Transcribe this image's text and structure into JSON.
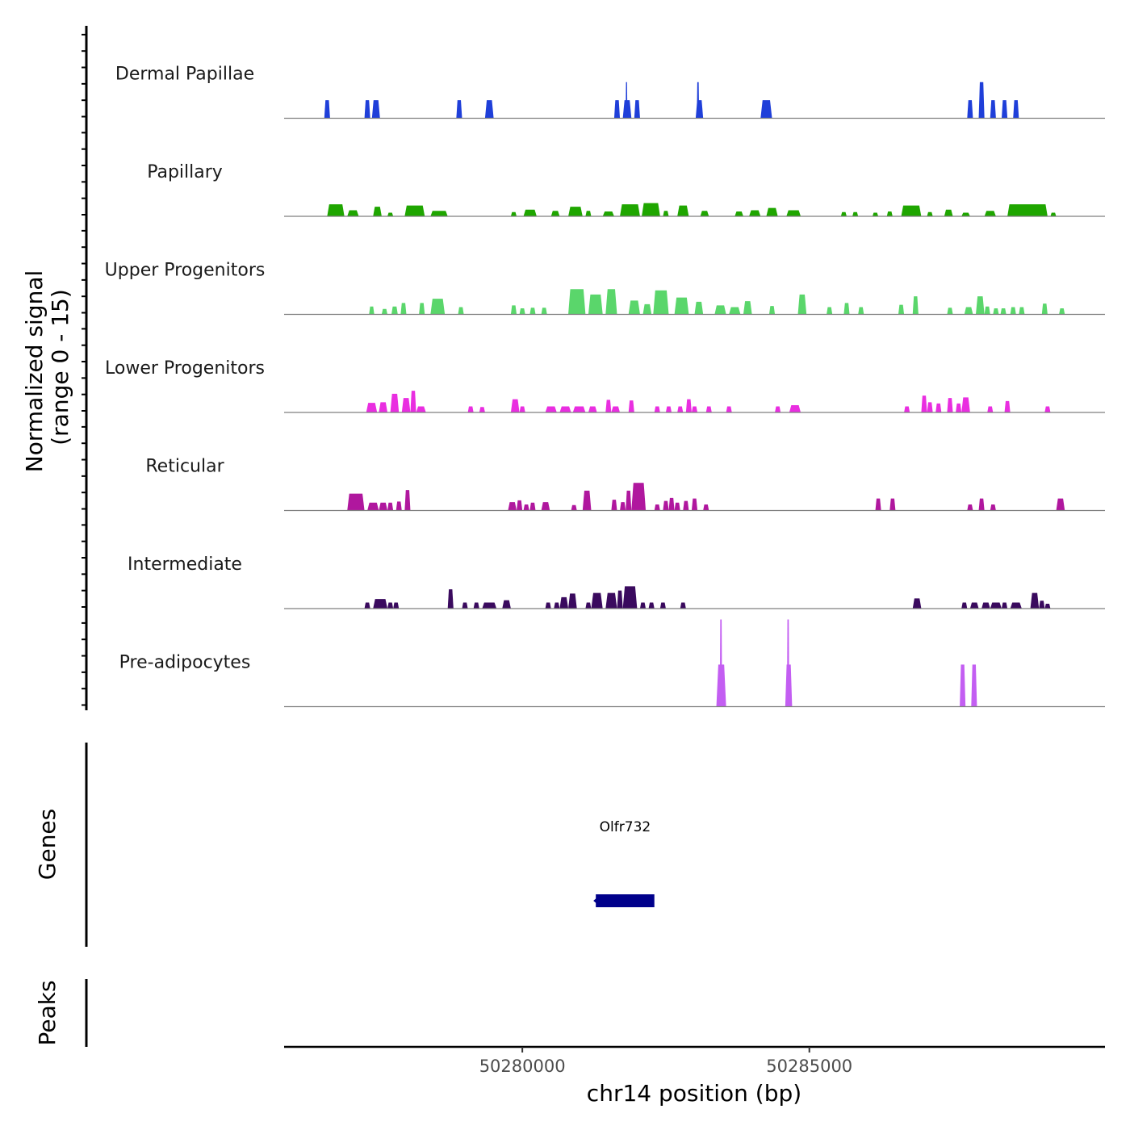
{
  "chart_data": {
    "type": "area",
    "title": "",
    "ylabel_line1": "Normalized signal",
    "ylabel_line2": "(range 0 - 15)",
    "y_range": [
      0,
      15
    ],
    "xlabel": "chr14 position (bp)",
    "x_range": [
      50275850,
      50290150
    ],
    "x_ticks": [
      {
        "value": 50280000,
        "label": "50280000"
      },
      {
        "value": 50285000,
        "label": "50285000"
      }
    ],
    "series": [
      {
        "name": "Dermal Papillae",
        "color": "#1f3fd9",
        "peaks": [
          [
            50276550,
            50276650,
            3
          ],
          [
            50277250,
            50277350,
            3
          ],
          [
            50277380,
            50277520,
            3
          ],
          [
            50278850,
            50278950,
            3
          ],
          [
            50279350,
            50279500,
            3
          ],
          [
            50281600,
            50281700,
            3
          ],
          [
            50281750,
            50281900,
            3
          ],
          [
            50281800,
            50281830,
            6
          ],
          [
            50281950,
            50282050,
            3
          ],
          [
            50283020,
            50283150,
            3
          ],
          [
            50283040,
            50283080,
            6
          ],
          [
            50284150,
            50284350,
            3
          ],
          [
            50287750,
            50287850,
            3
          ],
          [
            50287950,
            50288050,
            6
          ],
          [
            50288150,
            50288250,
            3
          ],
          [
            50288350,
            50288450,
            3
          ],
          [
            50288550,
            50288650,
            3
          ]
        ]
      },
      {
        "name": "Papillary",
        "color": "#1fa600",
        "peaks": [
          [
            50276600,
            50276900,
            2
          ],
          [
            50276950,
            50277150,
            1
          ],
          [
            50277400,
            50277550,
            1.6
          ],
          [
            50277650,
            50277750,
            0.6
          ],
          [
            50277950,
            50278300,
            1.8
          ],
          [
            50278400,
            50278700,
            0.9
          ],
          [
            50279800,
            50279900,
            0.7
          ],
          [
            50280020,
            50280250,
            1.1
          ],
          [
            50280500,
            50280650,
            0.9
          ],
          [
            50280800,
            50281050,
            1.6
          ],
          [
            50281100,
            50281200,
            0.9
          ],
          [
            50281400,
            50281600,
            0.8
          ],
          [
            50281700,
            50282050,
            2
          ],
          [
            50282080,
            50282400,
            2.2
          ],
          [
            50282450,
            50282550,
            0.9
          ],
          [
            50282700,
            50282900,
            1.8
          ],
          [
            50283100,
            50283250,
            0.9
          ],
          [
            50283700,
            50283850,
            0.8
          ],
          [
            50283950,
            50284150,
            1
          ],
          [
            50284250,
            50284450,
            1.4
          ],
          [
            50284600,
            50284850,
            1
          ],
          [
            50285550,
            50285650,
            0.7
          ],
          [
            50285750,
            50285850,
            0.7
          ],
          [
            50286100,
            50286200,
            0.6
          ],
          [
            50286350,
            50286450,
            0.8
          ],
          [
            50286600,
            50286950,
            1.8
          ],
          [
            50287050,
            50287150,
            0.7
          ],
          [
            50287350,
            50287500,
            1.1
          ],
          [
            50287650,
            50287800,
            0.6
          ],
          [
            50288050,
            50288250,
            0.9
          ],
          [
            50288450,
            50289150,
            2
          ],
          [
            50289200,
            50289300,
            0.6
          ]
        ]
      },
      {
        "name": "Upper Progenitors",
        "color": "#5ad66b",
        "peaks": [
          [
            50277330,
            50277420,
            1.3
          ],
          [
            50277550,
            50277650,
            0.9
          ],
          [
            50277720,
            50277830,
            1.3
          ],
          [
            50277880,
            50277980,
            1.9
          ],
          [
            50278200,
            50278300,
            1.9
          ],
          [
            50278400,
            50278650,
            2.6
          ],
          [
            50278880,
            50278980,
            1.2
          ],
          [
            50279800,
            50279900,
            1.5
          ],
          [
            50279950,
            50280050,
            1
          ],
          [
            50280130,
            50280230,
            1.1
          ],
          [
            50280330,
            50280430,
            1.1
          ],
          [
            50280800,
            50281100,
            4.2
          ],
          [
            50281150,
            50281400,
            3.3
          ],
          [
            50281450,
            50281650,
            4.2
          ],
          [
            50281850,
            50282050,
            2.3
          ],
          [
            50282100,
            50282250,
            1.7
          ],
          [
            50282280,
            50282550,
            4
          ],
          [
            50282650,
            50282900,
            2.8
          ],
          [
            50283000,
            50283150,
            2.1
          ],
          [
            50283350,
            50283550,
            1.5
          ],
          [
            50283600,
            50283800,
            1.2
          ],
          [
            50283850,
            50284000,
            2.2
          ],
          [
            50284300,
            50284400,
            1.4
          ],
          [
            50284800,
            50284950,
            3.3
          ],
          [
            50285300,
            50285400,
            1.2
          ],
          [
            50285600,
            50285700,
            1.9
          ],
          [
            50285850,
            50285950,
            1.2
          ],
          [
            50286550,
            50286650,
            1.6
          ],
          [
            50286800,
            50286900,
            3
          ],
          [
            50287400,
            50287500,
            1.1
          ],
          [
            50287700,
            50287850,
            1.2
          ],
          [
            50287900,
            50288050,
            3
          ],
          [
            50288050,
            50288150,
            1.3
          ],
          [
            50288200,
            50288300,
            1
          ],
          [
            50288330,
            50288430,
            1
          ],
          [
            50288500,
            50288600,
            1.2
          ],
          [
            50288650,
            50288750,
            1.2
          ],
          [
            50289050,
            50289150,
            1.8
          ],
          [
            50289350,
            50289450,
            1
          ]
        ]
      },
      {
        "name": "Lower Progenitors",
        "color": "#e92ee0",
        "peaks": [
          [
            50277280,
            50277470,
            1.6
          ],
          [
            50277500,
            50277650,
            1.7
          ],
          [
            50277700,
            50277850,
            3.1
          ],
          [
            50277900,
            50278050,
            2.4
          ],
          [
            50278050,
            50278150,
            3.6
          ],
          [
            50278150,
            50278320,
            1
          ],
          [
            50279050,
            50279150,
            1
          ],
          [
            50279250,
            50279350,
            0.9
          ],
          [
            50279800,
            50279950,
            2.2
          ],
          [
            50279950,
            50280050,
            1
          ],
          [
            50280400,
            50280600,
            1
          ],
          [
            50280650,
            50280850,
            1
          ],
          [
            50280880,
            50281100,
            1
          ],
          [
            50281150,
            50281300,
            1
          ],
          [
            50281450,
            50281550,
            2.1
          ],
          [
            50281550,
            50281700,
            1
          ],
          [
            50281850,
            50281950,
            2
          ],
          [
            50282300,
            50282400,
            1
          ],
          [
            50282500,
            50282600,
            1
          ],
          [
            50282700,
            50282800,
            1
          ],
          [
            50282850,
            50282950,
            2.2
          ],
          [
            50282950,
            50283050,
            1
          ],
          [
            50283200,
            50283300,
            1
          ],
          [
            50283550,
            50283650,
            1
          ],
          [
            50284400,
            50284500,
            1
          ],
          [
            50284650,
            50284850,
            1.2
          ],
          [
            50286650,
            50286750,
            1
          ],
          [
            50286950,
            50287050,
            2.8
          ],
          [
            50287050,
            50287150,
            1.7
          ],
          [
            50287200,
            50287300,
            1.5
          ],
          [
            50287400,
            50287500,
            2.4
          ],
          [
            50287550,
            50287650,
            1.5
          ],
          [
            50287650,
            50287800,
            2.5
          ],
          [
            50288100,
            50288200,
            1
          ],
          [
            50288400,
            50288500,
            1.9
          ],
          [
            50289100,
            50289200,
            1
          ]
        ]
      },
      {
        "name": "Reticular",
        "color": "#b0179e",
        "peaks": [
          [
            50276950,
            50277250,
            2.8
          ],
          [
            50277300,
            50277500,
            1.3
          ],
          [
            50277500,
            50277650,
            1.3
          ],
          [
            50277650,
            50277750,
            1.3
          ],
          [
            50277800,
            50277900,
            1.5
          ],
          [
            50277950,
            50278050,
            3.4
          ],
          [
            50279750,
            50279900,
            1.4
          ],
          [
            50279900,
            50280000,
            1.7
          ],
          [
            50280020,
            50280120,
            1
          ],
          [
            50280130,
            50280230,
            1.3
          ],
          [
            50280330,
            50280480,
            1.4
          ],
          [
            50280850,
            50280950,
            0.9
          ],
          [
            50281050,
            50281200,
            3.3
          ],
          [
            50281550,
            50281650,
            1.8
          ],
          [
            50281700,
            50281800,
            1.4
          ],
          [
            50281800,
            50281900,
            3.3
          ],
          [
            50281900,
            50282150,
            4.6
          ],
          [
            50282300,
            50282400,
            1
          ],
          [
            50282450,
            50282550,
            1.6
          ],
          [
            50282550,
            50282650,
            2.1
          ],
          [
            50282650,
            50282750,
            1.3
          ],
          [
            50282800,
            50282900,
            1.6
          ],
          [
            50282950,
            50283050,
            2
          ],
          [
            50283150,
            50283250,
            1
          ],
          [
            50286150,
            50286250,
            2
          ],
          [
            50286400,
            50286500,
            2
          ],
          [
            50287750,
            50287850,
            1
          ],
          [
            50287950,
            50288050,
            2
          ],
          [
            50288150,
            50288250,
            1
          ],
          [
            50289300,
            50289450,
            2
          ]
        ]
      },
      {
        "name": "Intermediate",
        "color": "#3a0a5e",
        "peaks": [
          [
            50277250,
            50277350,
            1
          ],
          [
            50277400,
            50277650,
            1.6
          ],
          [
            50277650,
            50277750,
            1
          ],
          [
            50277750,
            50277850,
            1
          ],
          [
            50278700,
            50278800,
            3.2
          ],
          [
            50278950,
            50279050,
            1
          ],
          [
            50279150,
            50279250,
            1
          ],
          [
            50279300,
            50279550,
            1
          ],
          [
            50279650,
            50279800,
            1.4
          ],
          [
            50280400,
            50280500,
            1
          ],
          [
            50280550,
            50280650,
            1
          ],
          [
            50280650,
            50280800,
            1.9
          ],
          [
            50280800,
            50280950,
            2.5
          ],
          [
            50281100,
            50281200,
            1
          ],
          [
            50281200,
            50281400,
            2.6
          ],
          [
            50281450,
            50281650,
            2.6
          ],
          [
            50281650,
            50281750,
            3
          ],
          [
            50281750,
            50282000,
            3.7
          ],
          [
            50282050,
            50282150,
            1
          ],
          [
            50282200,
            50282300,
            1
          ],
          [
            50282400,
            50282500,
            1
          ],
          [
            50282750,
            50282850,
            1
          ],
          [
            50286800,
            50286950,
            1.7
          ],
          [
            50287650,
            50287750,
            1
          ],
          [
            50287800,
            50287950,
            1
          ],
          [
            50288000,
            50288150,
            1
          ],
          [
            50288150,
            50288350,
            1
          ],
          [
            50288350,
            50288450,
            1
          ],
          [
            50288500,
            50288700,
            1
          ],
          [
            50288850,
            50289000,
            2.6
          ],
          [
            50289000,
            50289100,
            1.3
          ],
          [
            50289100,
            50289200,
            0.8
          ]
        ]
      },
      {
        "name": "Pre-adipocytes",
        "color": "#c35ef2",
        "peaks": [
          [
            50283380,
            50283550,
            7
          ],
          [
            50283440,
            50283480,
            14.5
          ],
          [
            50284580,
            50284700,
            7
          ],
          [
            50284610,
            50284650,
            14.5
          ],
          [
            50287620,
            50287720,
            7
          ],
          [
            50287820,
            50287920,
            7
          ]
        ]
      }
    ],
    "genes_title": "Genes",
    "genes": [
      {
        "name": "Olfr732",
        "start": 50281280,
        "end": 50282300,
        "strand": "-",
        "color": "#00008b"
      }
    ],
    "peaks_title": "Peaks",
    "peak_regions": []
  }
}
